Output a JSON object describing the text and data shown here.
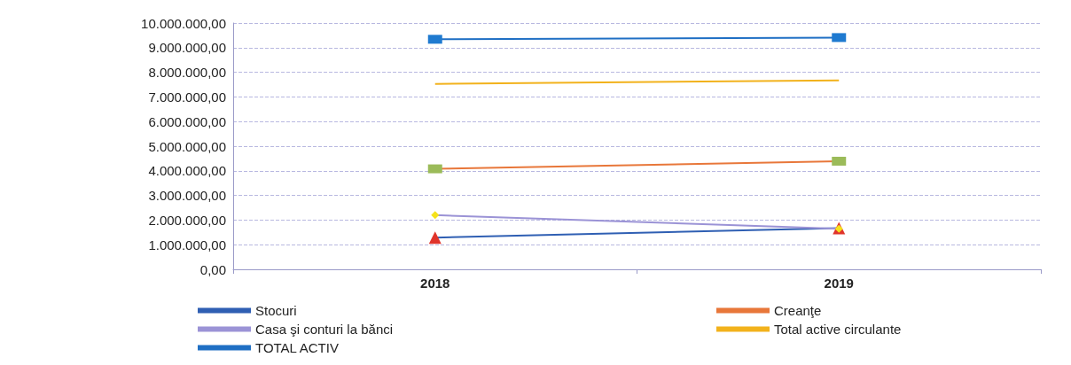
{
  "chart_data": {
    "type": "line",
    "categories": [
      "2018",
      "2019"
    ],
    "series": [
      {
        "name": "Stocuri",
        "color": "#2f5fb3",
        "colors": [
          "#e0342b",
          "#e0342b"
        ],
        "marker": "triangle",
        "values": [
          1290000,
          1670000
        ]
      },
      {
        "name": "Creanţe",
        "color": "#e8773a",
        "colors": [
          "#9bbb59",
          "#9bbb59"
        ],
        "marker": "square",
        "values": [
          4080000,
          4390000
        ]
      },
      {
        "name": "Casa şi conturi la bănci",
        "color": "#9b93d6",
        "colors": [
          "#f5e21c",
          "#f5e21c"
        ],
        "marker": "diamond",
        "values": [
          2200000,
          1650000
        ]
      },
      {
        "name": "Total active circulante",
        "color": "#f2b21c",
        "marker": "none",
        "values": [
          7530000,
          7670000
        ]
      },
      {
        "name": "TOTAL ACTIV",
        "color": "#1f6fc4",
        "colors": [
          "#1f7ad0",
          "#1f7ad0"
        ],
        "marker": "square",
        "values": [
          9340000,
          9410000
        ]
      }
    ],
    "ylim": [
      0,
      10000000
    ],
    "yticks": [
      {
        "value": 0,
        "label": "0,00"
      },
      {
        "value": 1000000,
        "label": "1.000.000,00"
      },
      {
        "value": 2000000,
        "label": "2.000.000,00"
      },
      {
        "value": 3000000,
        "label": "3.000.000,00"
      },
      {
        "value": 4000000,
        "label": "4.000.000,00"
      },
      {
        "value": 5000000,
        "label": "5.000.000,00"
      },
      {
        "value": 6000000,
        "label": "6.000.000,00"
      },
      {
        "value": 7000000,
        "label": "7.000.000,00"
      },
      {
        "value": 8000000,
        "label": "8.000.000,00"
      },
      {
        "value": 9000000,
        "label": "9.000.000,00"
      },
      {
        "value": 10000000,
        "label": "10.000.000,00"
      }
    ],
    "grid": "y",
    "legend": "bottom"
  }
}
